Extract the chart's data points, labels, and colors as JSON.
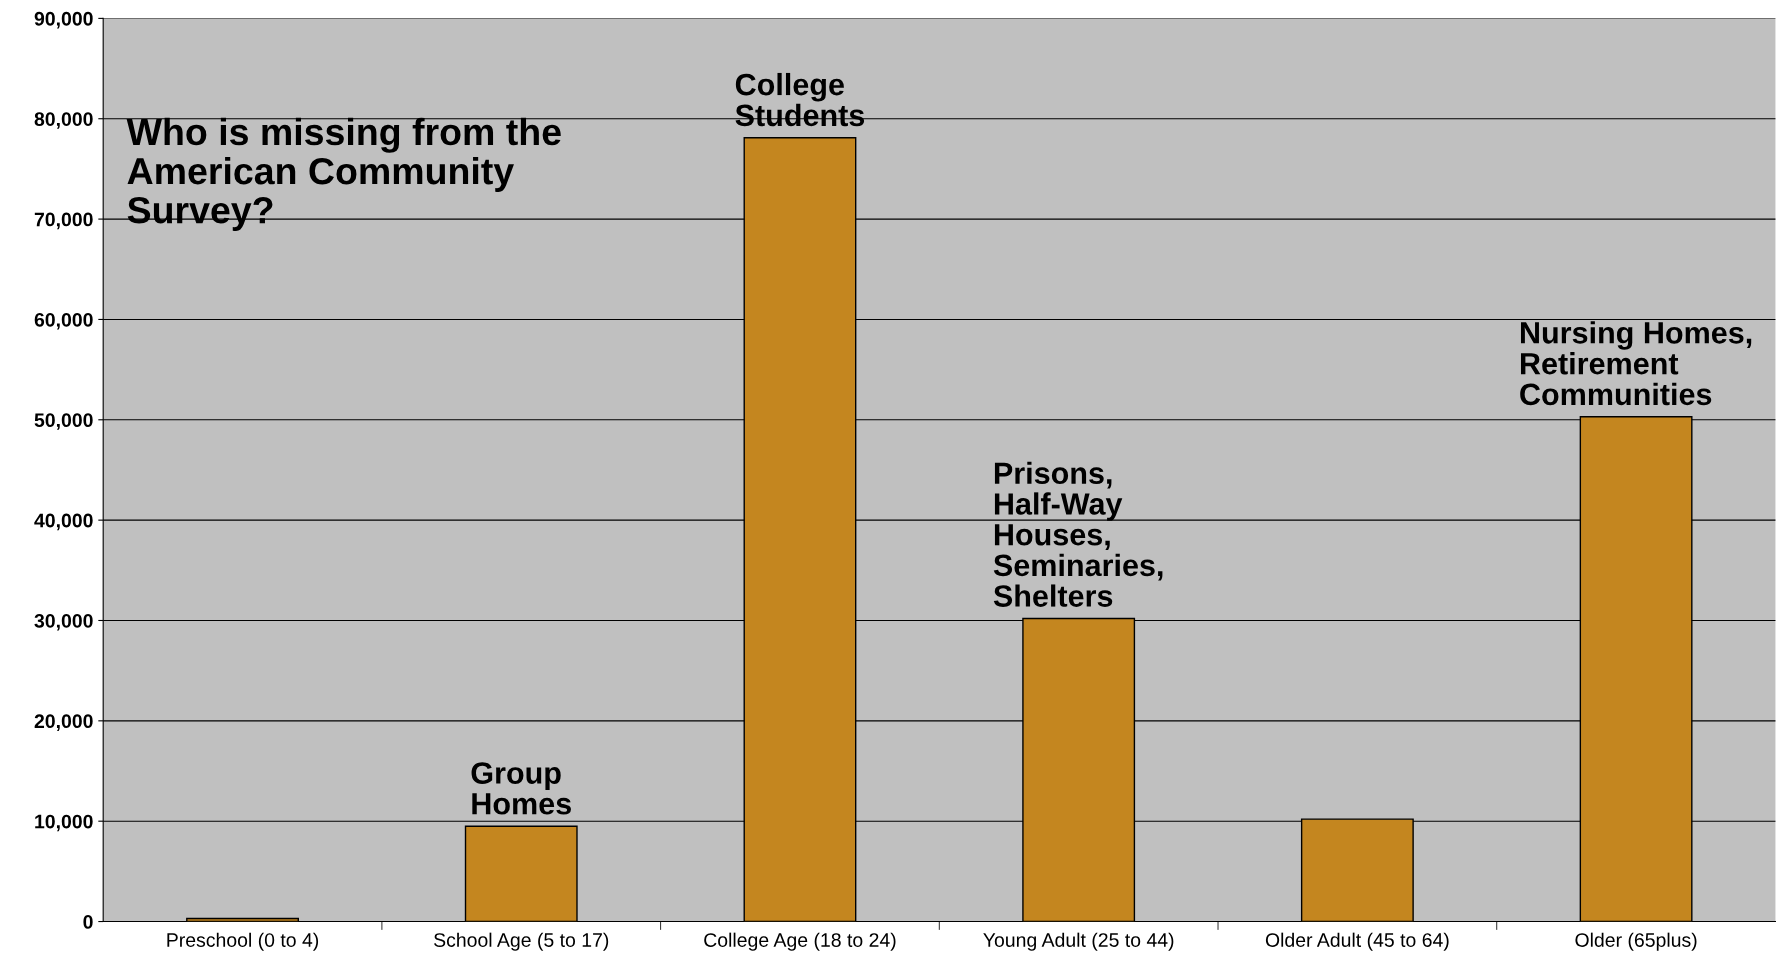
{
  "chart_data": {
    "type": "bar",
    "title": "Who is missing from the\nAmerican Community\nSurvey?",
    "categories": [
      "Preschool (0 to 4)",
      "School Age (5 to 17)",
      "College Age (18 to 24)",
      "Young Adult (25 to 44)",
      "Older Adult (45 to 64)",
      "Older (65plus)"
    ],
    "values": [
      300,
      9500,
      78100,
      30200,
      10200,
      50300
    ],
    "color": "#c4861f",
    "ylim": [
      0,
      90000
    ],
    "yticks": [
      {
        "value": 0,
        "label": "0"
      },
      {
        "value": 10000,
        "label": "10,000"
      },
      {
        "value": 20000,
        "label": "20,000"
      },
      {
        "value": 30000,
        "label": "30,000"
      },
      {
        "value": 40000,
        "label": "40,000"
      },
      {
        "value": 50000,
        "label": "50,000"
      },
      {
        "value": 60000,
        "label": "60,000"
      },
      {
        "value": 70000,
        "label": "70,000"
      },
      {
        "value": 80000,
        "label": "80,000"
      },
      {
        "value": 90000,
        "label": "90,000"
      }
    ],
    "grid": "y",
    "annotations": [
      {
        "text": "Group\nHomes",
        "x": "School Age (5 to 17)",
        "y": 9500
      },
      {
        "text": "College\nStudents",
        "x": "College Age (18 to 24)",
        "y": 78100
      },
      {
        "text": "Prisons,\nHalf-Way\nHouses,\nSeminaries,\nShelters",
        "x": "Young Adult (25 to 44)",
        "y": 30200
      },
      {
        "text": "Nursing Homes,\nRetirement\nCommunities",
        "x": "Older (65plus)",
        "y": 50300
      }
    ]
  }
}
